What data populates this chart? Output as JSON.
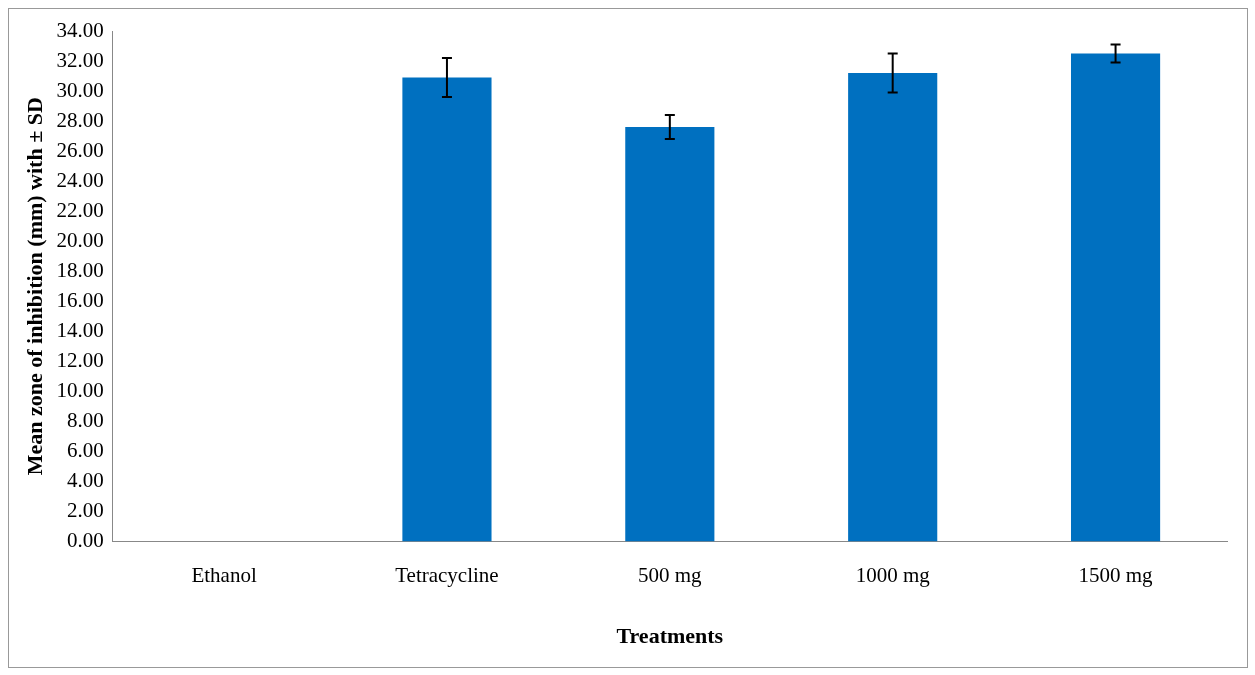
{
  "chart_data": {
    "type": "bar",
    "xlabel": "Treatments",
    "ylabel": "Mean zone of inhibition (mm) with ± SD",
    "categories": [
      "Ethanol",
      "Tetracycline",
      "500 mg",
      "1000 mg",
      "1500 mg"
    ],
    "values": [
      0,
      30.9,
      27.6,
      31.2,
      32.5
    ],
    "errors": [
      null,
      1.3,
      0.8,
      1.3,
      0.6
    ],
    "color": "#0070c0",
    "ylim": [
      0,
      34
    ],
    "yticks": [
      {
        "value": 0,
        "label": "0.00"
      },
      {
        "value": 2,
        "label": "2.00"
      },
      {
        "value": 4,
        "label": "4.00"
      },
      {
        "value": 6,
        "label": "6.00"
      },
      {
        "value": 8,
        "label": "8.00"
      },
      {
        "value": 10,
        "label": "10.00"
      },
      {
        "value": 12,
        "label": "12.00"
      },
      {
        "value": 14,
        "label": "14.00"
      },
      {
        "value": 16,
        "label": "16.00"
      },
      {
        "value": 18,
        "label": "18.00"
      },
      {
        "value": 20,
        "label": "20.00"
      },
      {
        "value": 22,
        "label": "22.00"
      },
      {
        "value": 24,
        "label": "24.00"
      },
      {
        "value": 26,
        "label": "26.00"
      },
      {
        "value": 28,
        "label": "28.00"
      },
      {
        "value": 30,
        "label": "30.00"
      },
      {
        "value": 32,
        "label": "32.00"
      },
      {
        "value": 34,
        "label": "34.00"
      }
    ],
    "grid": false,
    "legend": false
  }
}
